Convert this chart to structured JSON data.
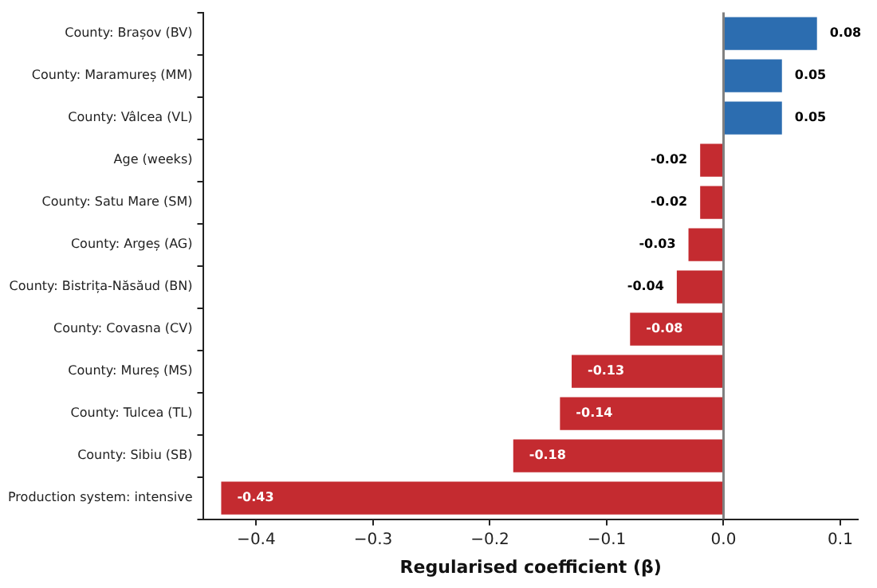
{
  "chart_data": {
    "type": "bar",
    "orientation": "horizontal",
    "categories": [
      "County: Brașov (BV)",
      "County: Maramureș (MM)",
      "County: Vâlcea (VL)",
      "Age (weeks)",
      "County: Satu Mare (SM)",
      "County: Argeș (AG)",
      "County: Bistrița-Năsăud (BN)",
      "County: Covasna (CV)",
      "County: Mureș (MS)",
      "County: Tulcea (TL)",
      "County: Sibiu (SB)",
      "Production system: intensive"
    ],
    "values": [
      0.08,
      0.05,
      0.05,
      -0.02,
      -0.02,
      -0.03,
      -0.04,
      -0.08,
      -0.13,
      -0.14,
      -0.18,
      -0.43
    ],
    "colors": [
      "#2c6db0",
      "#2c6db0",
      "#2c6db0",
      "#c42b30",
      "#c42b30",
      "#c42b30",
      "#c42b30",
      "#c42b30",
      "#c42b30",
      "#c42b30",
      "#c42b30",
      "#c42b30"
    ],
    "xlabel": "Regularised coefficient (β)",
    "xlim": [
      -0.445,
      0.115
    ],
    "xticks": [
      {
        "value": -0.4,
        "label": "−0.4"
      },
      {
        "value": -0.3,
        "label": "−0.3"
      },
      {
        "value": -0.2,
        "label": "−0.2"
      },
      {
        "value": -0.1,
        "label": "−0.1"
      },
      {
        "value": 0,
        "label": "0.0"
      },
      {
        "value": 0.1,
        "label": "0.1"
      }
    ],
    "ref_lines": [
      {
        "axis": "x",
        "value": 0,
        "color": "#808080"
      }
    ],
    "data_labels": true,
    "grid": false,
    "legend": false
  }
}
